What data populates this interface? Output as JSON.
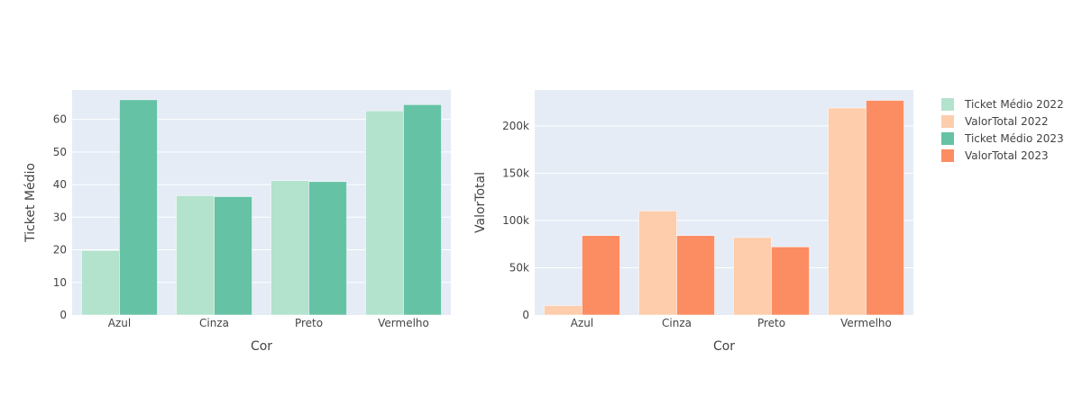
{
  "chart_data": [
    {
      "type": "bar",
      "categories": [
        "Azul",
        "Cinza",
        "Preto",
        "Vermelho"
      ],
      "series": [
        {
          "name": "Ticket Médio 2022",
          "values": [
            19.8,
            36.6,
            41.2,
            62.6
          ],
          "color": "#b3e2cd"
        },
        {
          "name": "Ticket Médio 2023",
          "values": [
            66.0,
            36.3,
            40.9,
            64.5
          ],
          "color": "#66c2a5"
        }
      ],
      "xlabel": "Cor",
      "ylabel": "Ticket Médio",
      "ylim": [
        0,
        69
      ],
      "yticks": [
        0,
        10,
        20,
        30,
        40,
        50,
        60
      ],
      "ytick_labels": [
        "0",
        "10",
        "20",
        "30",
        "40",
        "50",
        "60"
      ],
      "grid": true
    },
    {
      "type": "bar",
      "categories": [
        "Azul",
        "Cinza",
        "Preto",
        "Vermelho"
      ],
      "series": [
        {
          "name": "ValorTotal 2022",
          "values": [
            10000,
            110000,
            82000,
            219000
          ],
          "color": "#fdcdac"
        },
        {
          "name": "ValorTotal 2023",
          "values": [
            84000,
            84000,
            72000,
            227000
          ],
          "color": "#fc8d62"
        }
      ],
      "xlabel": "Cor",
      "ylabel": "ValorTotal",
      "ylim": [
        0,
        238000
      ],
      "yticks": [
        0,
        50000,
        100000,
        150000,
        200000
      ],
      "ytick_labels": [
        "0",
        "50k",
        "100k",
        "150k",
        "200k"
      ],
      "grid": true
    }
  ],
  "legend": {
    "placement": "right",
    "entries": [
      {
        "label": "Ticket Médio 2022",
        "color": "#b3e2cd"
      },
      {
        "label": "ValorTotal 2022",
        "color": "#fdcdac"
      },
      {
        "label": "Ticket Médio 2023",
        "color": "#66c2a5"
      },
      {
        "label": "ValorTotal 2023",
        "color": "#fc8d62"
      }
    ]
  }
}
